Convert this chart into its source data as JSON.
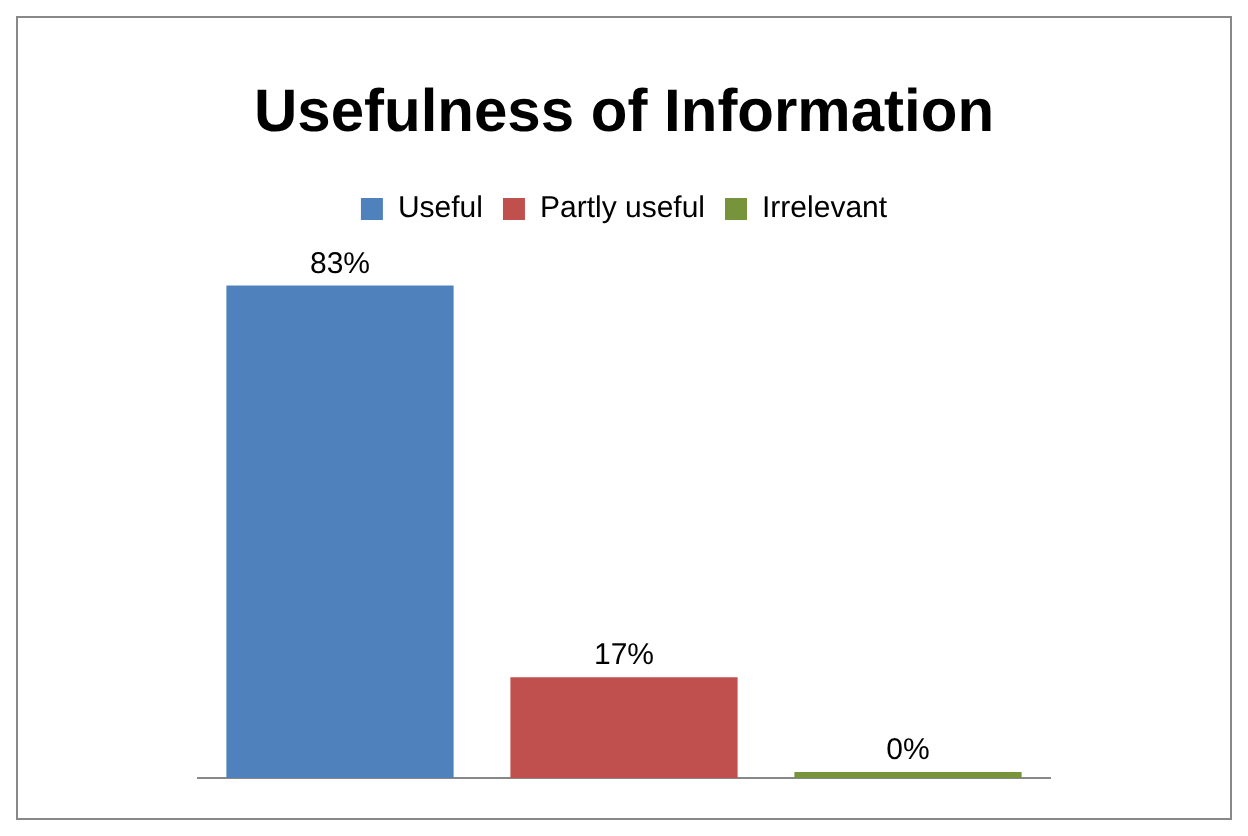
{
  "chart_data": {
    "type": "bar",
    "title": "Usefulness of Information",
    "categories": [
      null,
      null,
      null
    ],
    "stacked": true,
    "series": [
      {
        "name": "Useful",
        "color": "#4f81bd",
        "values": [
          83,
          null,
          null
        ],
        "value_labels": [
          "83%",
          null,
          null
        ]
      },
      {
        "name": "Partly useful",
        "color": "#c0504d",
        "values": [
          null,
          17,
          null
        ],
        "value_labels": [
          null,
          "17%",
          null
        ]
      },
      {
        "name": "Irrelevant",
        "color": "#77933c",
        "values": [
          null,
          null,
          0
        ],
        "value_labels": [
          null,
          null,
          "0%"
        ]
      }
    ],
    "legend": "top",
    "grid": false
  }
}
